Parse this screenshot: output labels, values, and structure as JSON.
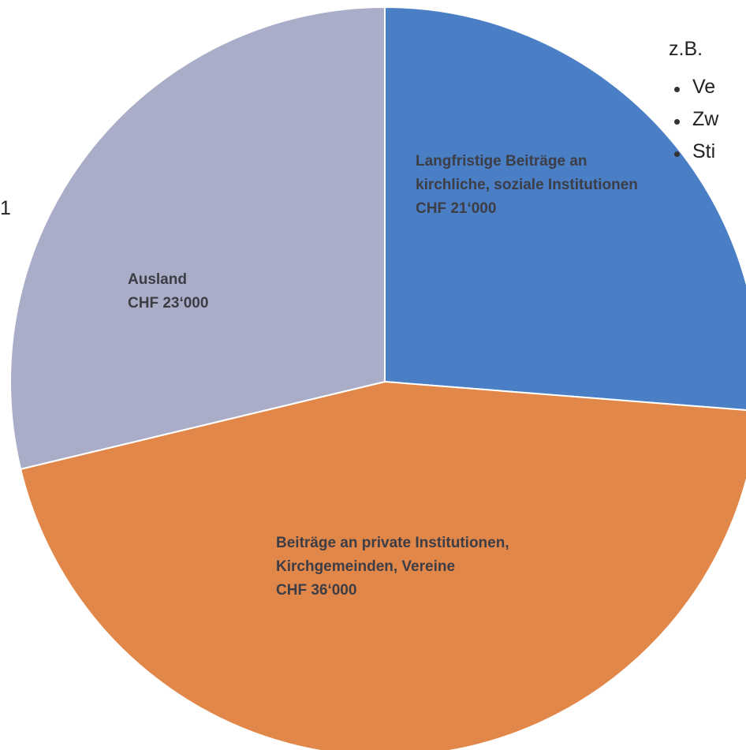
{
  "chart_data": {
    "type": "pie",
    "categories": [
      "Langfristige Beiträge an kirchliche, soziale Institutionen",
      "Beiträge an private Institutionen, Kirchgemeinden, Vereine",
      "Ausland"
    ],
    "values": [
      21000,
      36000,
      23000
    ],
    "value_labels": [
      "CHF 21‘000",
      "CHF 36‘000",
      "CHF 23‘000"
    ],
    "colors": [
      "#4a7fc6",
      "#e2874a",
      "#a9adc8"
    ],
    "annotation": "z.B.",
    "notes": [
      "Ve",
      "Zw",
      "Sti"
    ],
    "side_text": "1"
  }
}
